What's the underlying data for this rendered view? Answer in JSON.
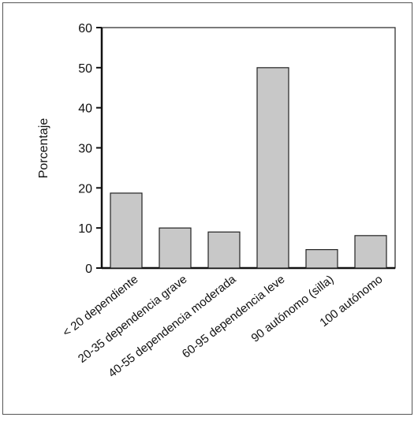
{
  "chart_data": {
    "type": "bar",
    "categories": [
      "< 20 dependiente",
      "20-35 dependencia grave",
      "40-55 dependencia moderada",
      "60-95 dependencia leve",
      "90 autónomo (silla)",
      "100 autónomo"
    ],
    "values": [
      18.7,
      10,
      9,
      50,
      4.6,
      8.1
    ],
    "title": "",
    "xlabel": "",
    "ylabel": "Porcentaje",
    "ylim": [
      0,
      60
    ],
    "yticks": [
      "0",
      "10",
      "20",
      "30",
      "40",
      "50",
      "60"
    ],
    "grid": false,
    "bar_color": "#c8c8c8"
  }
}
